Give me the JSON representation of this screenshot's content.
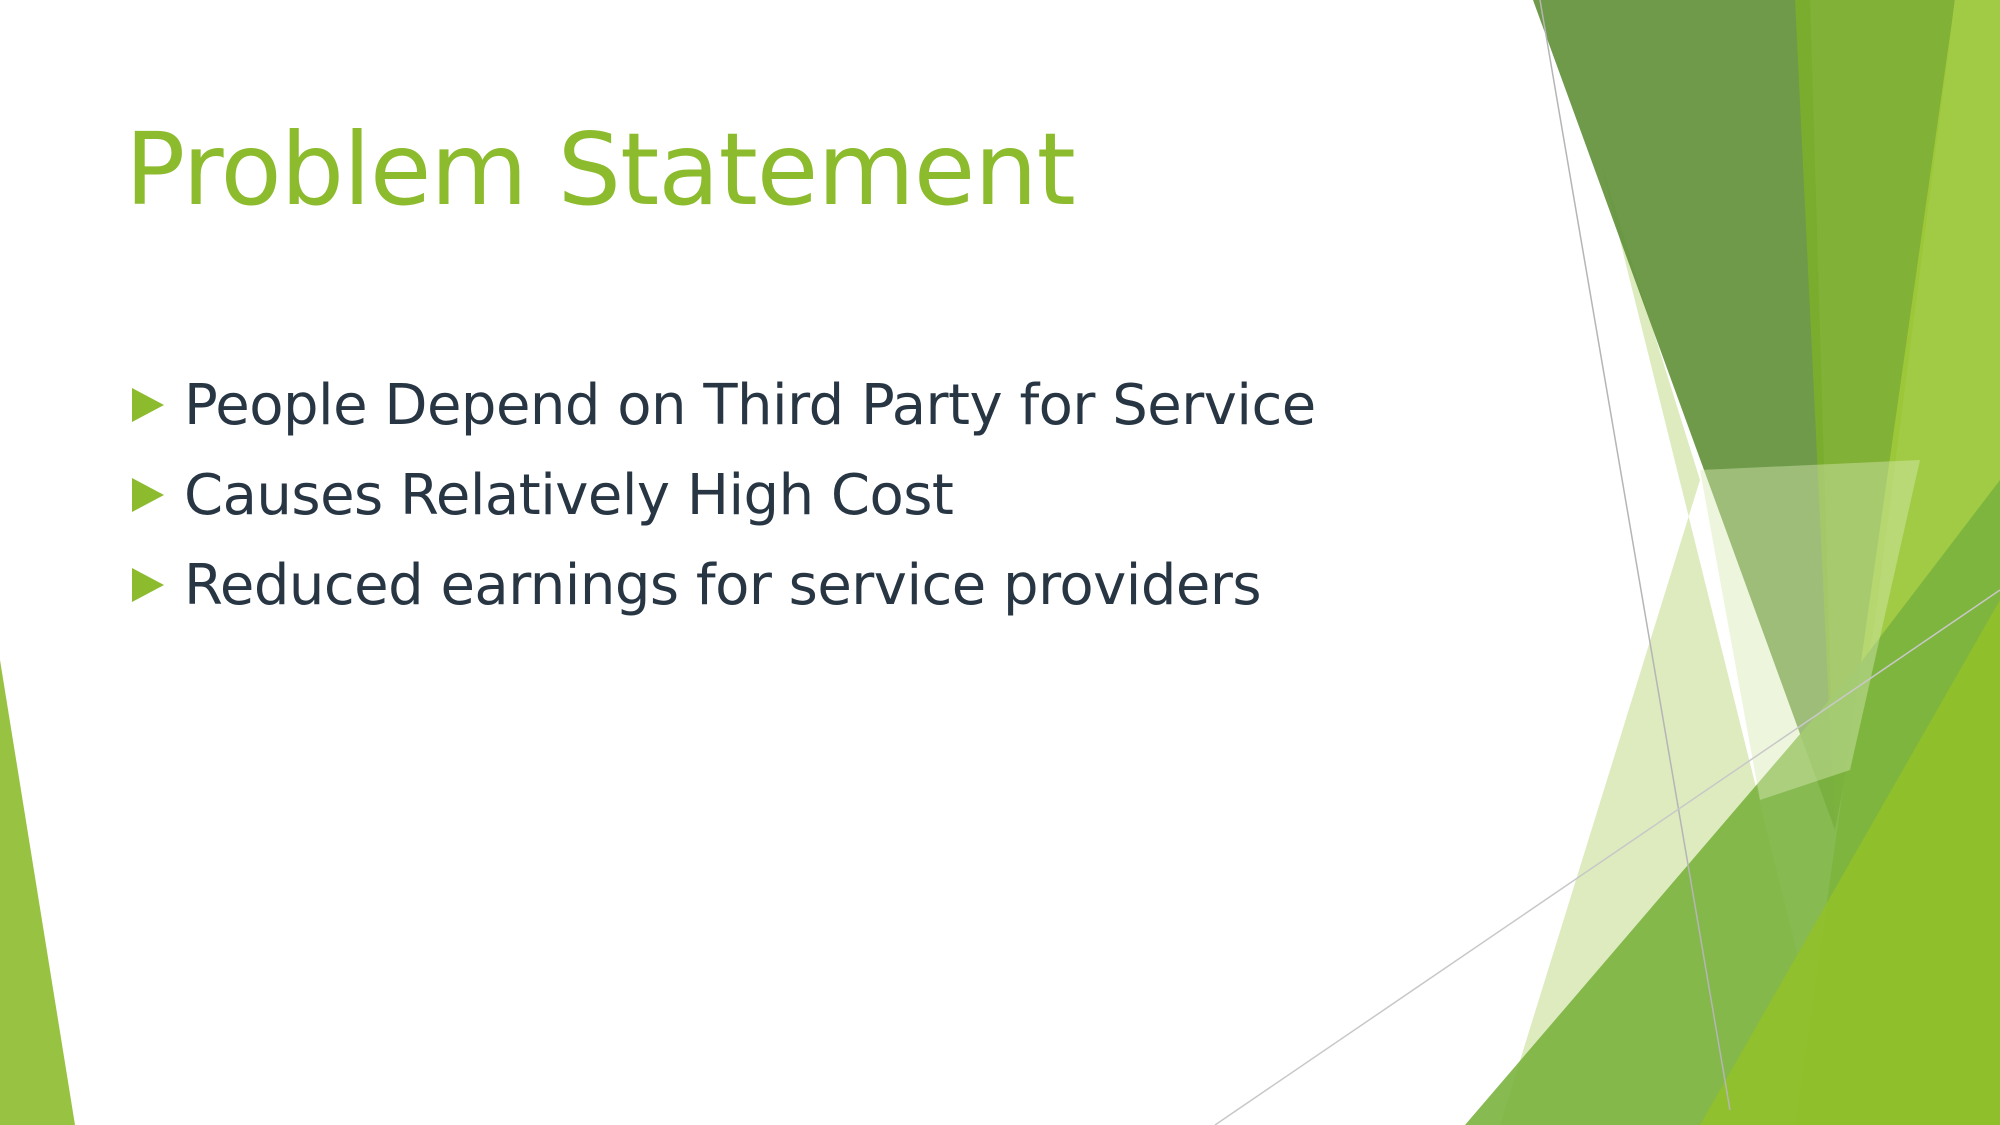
{
  "slide": {
    "title": "Problem Statement",
    "bullets": [
      {
        "text": "People Depend on Third Party for Service"
      },
      {
        "text": "Causes Relatively High Cost"
      },
      {
        "text": "Reduced earnings for service providers"
      }
    ]
  },
  "theme": {
    "title_color": "#8dbb2e",
    "text_color": "#283644",
    "accent_green": "#8dbb2e",
    "dark_green": "#5e8f36",
    "light_green": "#dcebc0"
  }
}
